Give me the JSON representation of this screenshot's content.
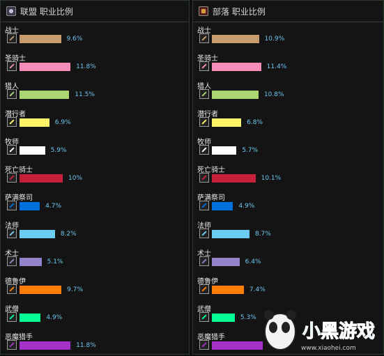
{
  "chart_data": [
    {
      "type": "bar",
      "title": "联盟 职业比例",
      "categories": [
        "战士",
        "圣骑士",
        "猎人",
        "潜行者",
        "牧师",
        "死亡骑士",
        "萨满祭司",
        "法师",
        "术士",
        "德鲁伊",
        "武僧",
        "恶魔猎手"
      ],
      "values": [
        9.6,
        11.8,
        11.5,
        6.9,
        5.9,
        10,
        4.7,
        8.2,
        5.1,
        9.7,
        4.9,
        11.8
      ],
      "labels": [
        "9.6%",
        "11.8%",
        "11.5%",
        "6.9%",
        "5.9%",
        "10%",
        "4.7%",
        "8.2%",
        "5.1%",
        "9.7%",
        "4.9%",
        "11.8%"
      ],
      "colors": [
        "#c79c6e",
        "#f58cba",
        "#abd473",
        "#fff569",
        "#ffffff",
        "#c41f3b",
        "#0070de",
        "#69ccf0",
        "#9482c9",
        "#ff7d0a",
        "#00ff96",
        "#a330c9"
      ]
    },
    {
      "type": "bar",
      "title": "部落 职业比例",
      "categories": [
        "战士",
        "圣骑士",
        "猎人",
        "潜行者",
        "牧师",
        "死亡骑士",
        "萨满祭司",
        "法师",
        "术士",
        "德鲁伊",
        "武僧",
        "恶魔猎手"
      ],
      "values": [
        10.9,
        11.4,
        10.8,
        6.8,
        5.7,
        10.1,
        4.9,
        8.7,
        6.4,
        7.4,
        5.3,
        11.8
      ],
      "labels": [
        "10.9%",
        "11.4%",
        "10.8%",
        "6.8%",
        "5.7%",
        "10.1%",
        "4.9%",
        "8.7%",
        "6.4%",
        "7.4%",
        "5.3%",
        ""
      ],
      "colors": [
        "#c79c6e",
        "#f58cba",
        "#abd473",
        "#fff569",
        "#ffffff",
        "#c41f3b",
        "#0070de",
        "#69ccf0",
        "#9482c9",
        "#ff7d0a",
        "#00ff96",
        "#a330c9"
      ]
    }
  ],
  "watermark": {
    "brand": "小黑游戏",
    "url": "www.xiaohei.com"
  }
}
